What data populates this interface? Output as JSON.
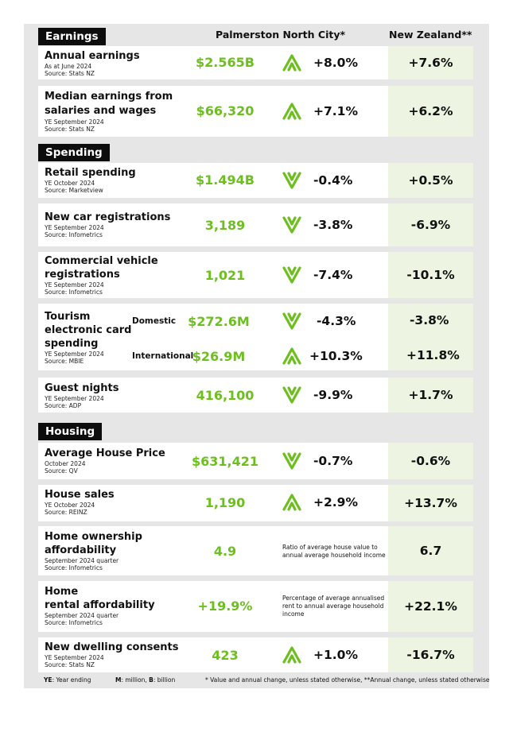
{
  "headers": {
    "city": "Palmerston North City*",
    "nz": "New Zealand**"
  },
  "sections": {
    "earnings": "Earnings",
    "spending": "Spending",
    "housing": "Housing"
  },
  "rows": {
    "annual_earnings": {
      "label": "Annual earnings",
      "period": "As at June 2024",
      "source": "Source: Stats NZ",
      "value": "$2.565B",
      "change": "+8.0%",
      "trend": "up",
      "nz": "+7.6%"
    },
    "median_earnings": {
      "label1": "Median earnings from",
      "label2": "salaries and wages",
      "period": "YE September 2024",
      "source": "Source: Stats NZ",
      "value": "$66,320",
      "change": "+7.1%",
      "trend": "up",
      "nz": "+6.2%"
    },
    "retail_spending": {
      "label": "Retail spending",
      "period": "YE October 2024",
      "source": "Source: Marketview",
      "value": "$1.494B",
      "change": "-0.4%",
      "trend": "down",
      "nz": "+0.5%"
    },
    "new_car": {
      "label": "New car registrations",
      "period": "YE September 2024",
      "source": "Source: Infometrics",
      "value": "3,189",
      "change": "-3.8%",
      "trend": "down",
      "nz": "-6.9%"
    },
    "commercial": {
      "label1": "Commercial vehicle",
      "label2": "registrations",
      "period": "YE September 2024",
      "source": "Source: Infometrics",
      "value": "1,021",
      "change": "-7.4%",
      "trend": "down",
      "nz": "-10.1%"
    },
    "tourism": {
      "label1": "Tourism",
      "label2": "electronic card",
      "label3": "spending",
      "period": "YE September 2024",
      "source": "Source: MBIE",
      "domestic": {
        "label": "Domestic",
        "value": "$272.6M",
        "change": "-4.3%",
        "trend": "down",
        "nz": "-3.8%"
      },
      "international": {
        "label": "International",
        "value": "$26.9M",
        "change": "+10.3%",
        "trend": "up",
        "nz": "+11.8%"
      }
    },
    "guest_nights": {
      "label": "Guest nights",
      "period": "YE September 2024",
      "source": "Source: ADP",
      "value": "416,100",
      "change": "-9.9%",
      "trend": "down",
      "nz": "+1.7%"
    },
    "house_price": {
      "label": "Average House Price",
      "period": "October 2024",
      "source": "Source: QV",
      "value": "$631,421",
      "change": "-0.7%",
      "trend": "down",
      "nz": "-0.6%"
    },
    "house_sales": {
      "label": "House sales",
      "period": "YE October 2024",
      "source": "Source: REINZ",
      "value": "1,190",
      "change": "+2.9%",
      "trend": "up",
      "nz": "+13.7%"
    },
    "ownership": {
      "label1": "Home ownership",
      "label2": "affordability",
      "period": "September 2024 quarter",
      "source": "Source: Infometrics",
      "value": "4.9",
      "note": "Ratio of average house value to annual average household income",
      "nz": "6.7"
    },
    "rental": {
      "label1": "Home",
      "label2": "rental affordability",
      "period": "September 2024 quarter",
      "source": "Source: Infometrics",
      "value": "+19.9%",
      "note": "Percentage of average annualised rent to annual average household income",
      "nz": "+22.1%"
    },
    "dwelling": {
      "label": "New dwelling consents",
      "period": "YE September 2024",
      "source": "Source: Stats NZ",
      "value": "423",
      "change": "+1.0%",
      "trend": "up",
      "nz": "-16.7%"
    }
  },
  "footer": {
    "ye_key": "YE",
    "ye_text": ": Year ending",
    "m_key": "M",
    "m_text": ": million, ",
    "b_key": "B",
    "b_text": ": billion",
    "note": "* Value and annual change, unless stated otherwise, **Annual change, unless stated otherwise"
  },
  "colors": {
    "accent_green": "#6cbf1e",
    "nz_cell": "#edf5e2",
    "panel": "#e6e6e6",
    "header_black": "#0d0d0d"
  },
  "icons": {
    "up": "chevron-up-icon",
    "down": "chevron-down-icon"
  }
}
